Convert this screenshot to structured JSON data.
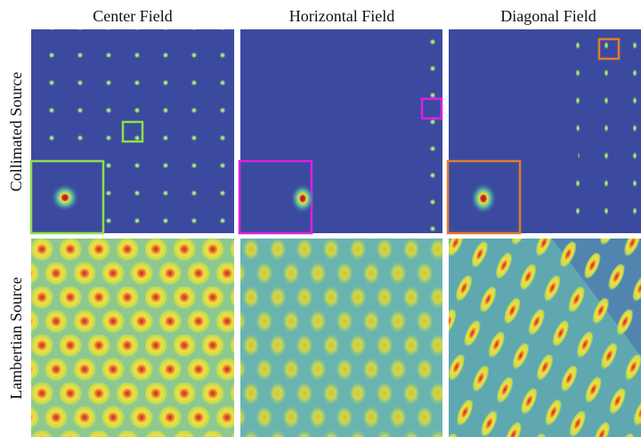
{
  "columns": [
    "Center Field",
    "Horizontal Field",
    "Diagonal Field"
  ],
  "rows": [
    "Collimated Source",
    "Lambertian Source"
  ]
}
